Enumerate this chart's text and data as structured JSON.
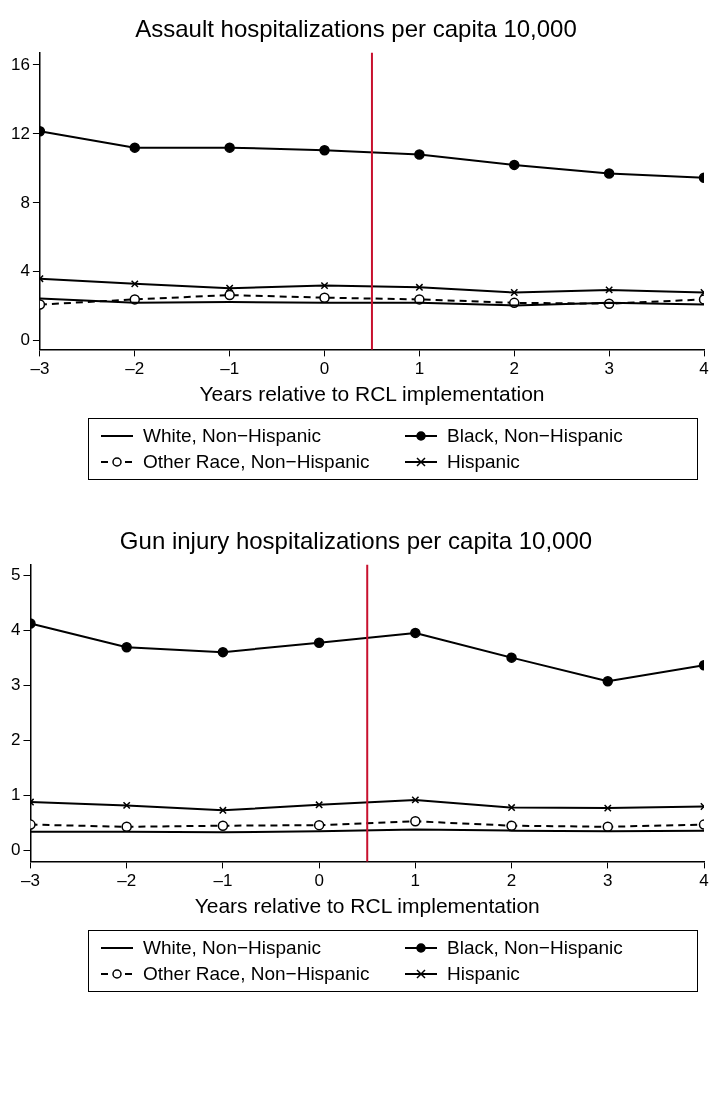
{
  "chart_data": [
    {
      "type": "line",
      "title": "Assault hospitalizations per capita 10,000",
      "xlabel": "Years relative to RCL implementation",
      "x": [
        -3,
        -2,
        -1,
        0,
        1,
        2,
        3,
        4
      ],
      "xlim": [
        -3,
        4
      ],
      "xticks": [
        {
          "value": -3,
          "label": "–3"
        },
        {
          "value": -2,
          "label": "–2"
        },
        {
          "value": -1,
          "label": "–1"
        },
        0,
        1,
        2,
        3,
        4
      ],
      "ylim": [
        -0.5,
        16.7
      ],
      "yticks": [
        0,
        4,
        8,
        12,
        16
      ],
      "grid": false,
      "legend": "bottom",
      "ref_lines": [
        {
          "axis": "x",
          "value": 0.5,
          "color": "#c8102e"
        }
      ],
      "series": [
        {
          "name": "White, Non−Hispanic",
          "color": "#000000",
          "marker": "none",
          "line_style": "solid",
          "values": [
            2.45,
            2.2,
            2.25,
            2.2,
            2.2,
            2.05,
            2.2,
            2.1
          ]
        },
        {
          "name": "Black, Non−Hispanic",
          "color": "#000000",
          "marker": "circle",
          "line_style": "solid",
          "values": [
            12.15,
            11.2,
            11.2,
            11.05,
            10.8,
            10.2,
            9.7,
            9.45
          ]
        },
        {
          "name": "Other Race, Non−Hispanic",
          "color": "#000000",
          "marker": "circle",
          "line_style": "dashed",
          "values": [
            2.1,
            2.4,
            2.65,
            2.5,
            2.4,
            2.2,
            2.15,
            2.4
          ]
        },
        {
          "name": "Hispanic",
          "color": "#000000",
          "marker": "cross",
          "line_style": "solid",
          "values": [
            3.6,
            3.3,
            3.05,
            3.2,
            3.1,
            2.8,
            2.95,
            2.8
          ]
        }
      ]
    },
    {
      "type": "line",
      "title": "Gun injury hospitalizations per capita 10,000",
      "xlabel": "Years relative to RCL implementation",
      "x": [
        -3,
        -2,
        -1,
        0,
        1,
        2,
        3,
        4
      ],
      "xlim": [
        -3,
        4
      ],
      "xticks": [
        {
          "value": -3,
          "label": "–3"
        },
        {
          "value": -2,
          "label": "–2"
        },
        {
          "value": -1,
          "label": "–1"
        },
        0,
        1,
        2,
        3,
        4
      ],
      "ylim": [
        -0.2,
        5.2
      ],
      "yticks": [
        0,
        1,
        2,
        3,
        4,
        5
      ],
      "grid": false,
      "legend": "bottom",
      "ref_lines": [
        {
          "axis": "x",
          "value": 0.5,
          "color": "#c8102e"
        }
      ],
      "series": [
        {
          "name": "White, Non−Hispanic",
          "color": "#000000",
          "marker": "none",
          "line_style": "solid",
          "values": [
            0.34,
            0.34,
            0.33,
            0.35,
            0.38,
            0.36,
            0.35,
            0.36
          ]
        },
        {
          "name": "Black, Non−Hispanic",
          "color": "#000000",
          "marker": "circle",
          "line_style": "solid",
          "values": [
            4.13,
            3.7,
            3.61,
            3.78,
            3.96,
            3.51,
            3.08,
            3.37
          ]
        },
        {
          "name": "Other Race, Non−Hispanic",
          "color": "#000000",
          "marker": "circle",
          "line_style": "dashed",
          "values": [
            0.47,
            0.43,
            0.45,
            0.46,
            0.53,
            0.45,
            0.43,
            0.47
          ]
        },
        {
          "name": "Hispanic",
          "color": "#000000",
          "marker": "cross",
          "line_style": "solid",
          "values": [
            0.88,
            0.82,
            0.73,
            0.83,
            0.92,
            0.78,
            0.77,
            0.8
          ]
        }
      ]
    }
  ]
}
